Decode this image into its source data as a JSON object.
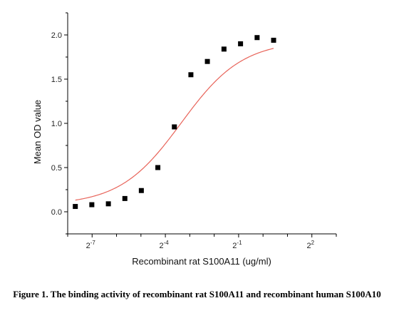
{
  "chart_data": {
    "type": "scatter",
    "xscale": "log2",
    "xlabel": "Recombinant rat  S100A11 (ug/ml)",
    "ylabel": "Mean OD value",
    "xlim": [
      0.00390625,
      8
    ],
    "ylim": [
      -0.25,
      2.25
    ],
    "x_ticks": [
      {
        "base": "2",
        "exp": "-7",
        "value": 0.0078125
      },
      {
        "base": "2",
        "exp": "-4",
        "value": 0.0625
      },
      {
        "base": "2",
        "exp": "-1",
        "value": 0.5
      },
      {
        "base": "2",
        "exp": "2",
        "value": 4
      }
    ],
    "y_ticks": [
      "0.0",
      "0.5",
      "1.0",
      "1.5",
      "2.0"
    ],
    "y_tick_values": [
      0,
      0.5,
      1.0,
      1.5,
      2.0
    ],
    "points": [
      {
        "x": 0.00485,
        "y": 0.06
      },
      {
        "x": 0.00775,
        "y": 0.08
      },
      {
        "x": 0.0124,
        "y": 0.09
      },
      {
        "x": 0.0198,
        "y": 0.15
      },
      {
        "x": 0.0316,
        "y": 0.24
      },
      {
        "x": 0.0505,
        "y": 0.5
      },
      {
        "x": 0.0807,
        "y": 0.96
      },
      {
        "x": 0.129,
        "y": 1.55
      },
      {
        "x": 0.206,
        "y": 1.7
      },
      {
        "x": 0.33,
        "y": 1.84
      },
      {
        "x": 0.528,
        "y": 1.9
      },
      {
        "x": 0.845,
        "y": 1.97
      },
      {
        "x": 1.35,
        "y": 1.94
      }
    ],
    "fit": {
      "bottom": 0.075,
      "top": 1.935,
      "log2_ec50": -3.35,
      "hill": 1.15
    },
    "point_color": "#000000",
    "fit_color": "#e8645a",
    "caption": "Figure 1. The binding activity of recombinant rat S100A11 and recombinant human S100A10"
  }
}
